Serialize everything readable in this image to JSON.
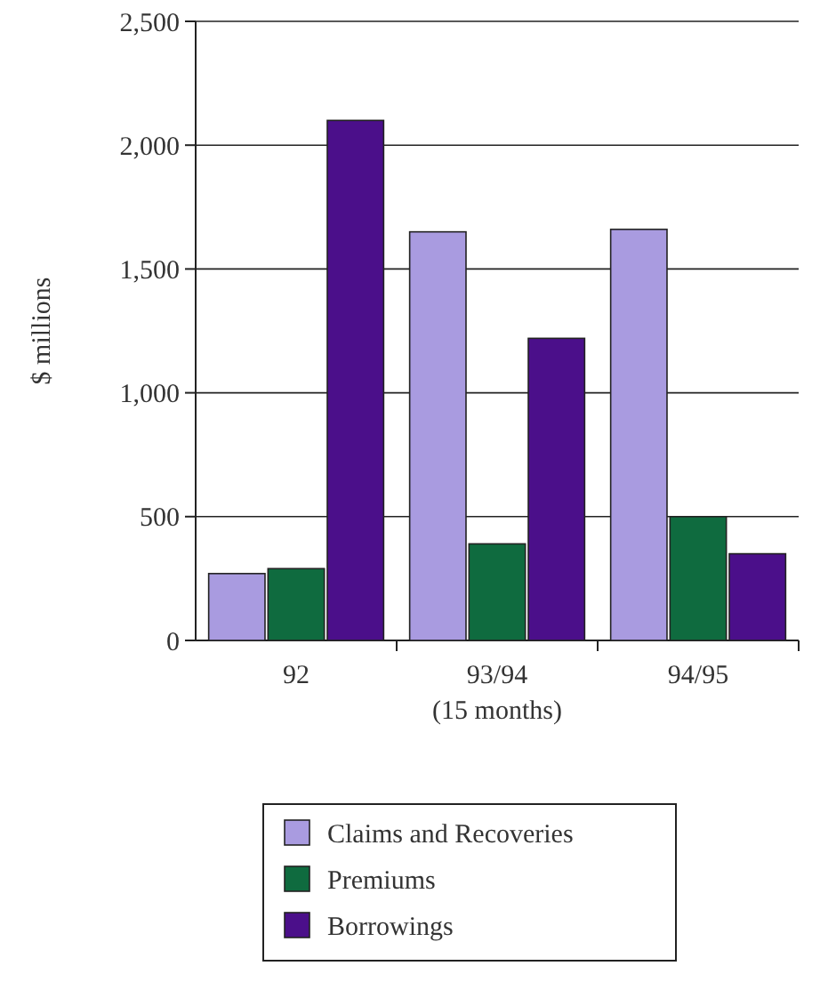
{
  "chart_data": {
    "type": "bar",
    "ylabel": "$ millions",
    "categories": [
      "92",
      "93/94\n(15 months)",
      "94/95"
    ],
    "series": [
      {
        "name": "Claims and Recoveries",
        "color": "#a99be0",
        "values": [
          270,
          1650,
          1660
        ]
      },
      {
        "name": "Premiums",
        "color": "#0f6b3f",
        "values": [
          290,
          390,
          500
        ]
      },
      {
        "name": "Borrowings",
        "color": "#4b0f8a",
        "values": [
          2100,
          1220,
          350
        ]
      }
    ],
    "ylim": [
      0,
      2500
    ],
    "yticks": [
      0,
      {
        "value": 500,
        "label": "500"
      },
      {
        "value": 1000,
        "label": "1,000"
      },
      {
        "value": 1500,
        "label": "1,500"
      },
      {
        "value": 2000,
        "label": "2,000"
      },
      {
        "value": 2500,
        "label": "2,500"
      }
    ],
    "grid": "y",
    "legend": "bottom"
  }
}
